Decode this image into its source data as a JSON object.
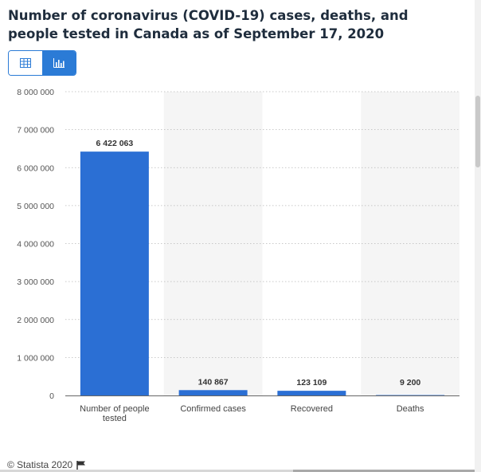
{
  "title": "Number of coronavirus (COVID-19) cases, deaths, and people tested in Canada as of September 17, 2020",
  "view_toggle": {
    "table_icon": "table-icon",
    "chart_icon": "bar-chart-icon",
    "active": "chart"
  },
  "colors": {
    "bar": "#2b6fd4",
    "accent": "#2b7bd6",
    "band": "#f5f5f5"
  },
  "chart_data": {
    "type": "bar",
    "categories": [
      "Number of people tested",
      "Confirmed cases",
      "Recovered",
      "Deaths"
    ],
    "values": [
      6422063,
      140867,
      123109,
      9200
    ],
    "value_labels": [
      "6 422 063",
      "140 867",
      "123 109",
      "9 200"
    ],
    "ylim": [
      0,
      8000000
    ],
    "yticks": [
      0,
      1000000,
      2000000,
      3000000,
      4000000,
      5000000,
      6000000,
      7000000,
      8000000
    ],
    "ytick_labels": [
      "0",
      "1 000 000",
      "2 000 000",
      "3 000 000",
      "4 000 000",
      "5 000 000",
      "6 000 000",
      "7 000 000",
      "8 000 000"
    ],
    "grid": true,
    "xlabel": "",
    "ylabel": ""
  },
  "footer": {
    "copyright": "© Statista 2020",
    "flag_icon": "flag-icon"
  }
}
